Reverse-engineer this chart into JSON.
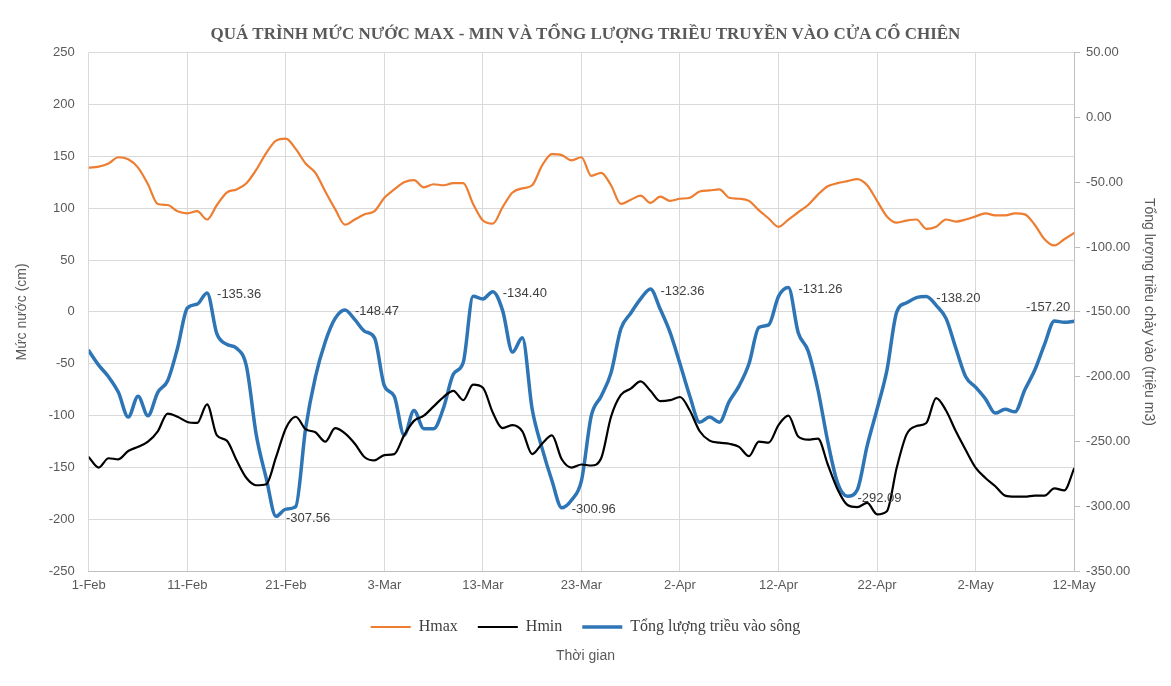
{
  "chart_data": {
    "type": "line",
    "title": "QUÁ TRÌNH MỨC NƯỚC MAX - MIN VÀ TỔNG LƯỢNG TRIỀU TRUYỀN VÀO CỬA CỔ CHIÊN",
    "xlabel": "Thời gian",
    "ylabel": "Mức nước (cm)",
    "y2label": "Tổng lượng triều chảy vào (triệu m3)",
    "x": [
      "--02-01",
      "--02-02",
      "--02-03",
      "--02-04",
      "--02-05",
      "--02-06",
      "--02-07",
      "--02-08",
      "--02-09",
      "--02-10",
      "--02-11",
      "--02-12",
      "--02-13",
      "--02-14",
      "--02-15",
      "--02-16",
      "--02-17",
      "--02-18",
      "--02-19",
      "--02-20",
      "--02-21",
      "--02-22",
      "--02-23",
      "--02-24",
      "--02-25",
      "--02-26",
      "--02-27",
      "--02-28",
      "--03-01",
      "--03-02",
      "--03-03",
      "--03-04",
      "--03-05",
      "--03-06",
      "--03-07",
      "--03-08",
      "--03-09",
      "--03-10",
      "--03-11",
      "--03-12",
      "--03-13",
      "--03-14",
      "--03-15",
      "--03-16",
      "--03-17",
      "--03-18",
      "--03-19",
      "--03-20",
      "--03-21",
      "--03-22",
      "--03-23",
      "--03-24",
      "--03-25",
      "--03-26",
      "--03-27",
      "--03-28",
      "--03-29",
      "--03-30",
      "--03-31",
      "--04-01",
      "--04-02",
      "--04-03",
      "--04-04",
      "--04-05",
      "--04-06",
      "--04-07",
      "--04-08",
      "--04-09",
      "--04-10",
      "--04-11",
      "--04-12",
      "--04-13",
      "--04-14",
      "--04-15",
      "--04-16",
      "--04-17",
      "--04-18",
      "--04-19",
      "--04-20",
      "--04-21",
      "--04-22",
      "--04-23",
      "--04-24",
      "--04-25",
      "--04-26",
      "--04-27",
      "--04-28",
      "--04-29",
      "--04-30",
      "--05-01",
      "--05-02",
      "--05-03",
      "--05-04",
      "--05-05",
      "--05-06",
      "--05-07",
      "--05-08",
      "--05-09",
      "--05-10",
      "--05-11",
      "--05-12"
    ],
    "xlim": [
      "--02-01",
      "--05-12"
    ],
    "xticks": [
      {
        "value": "--02-01",
        "label": "1-Feb"
      },
      {
        "value": "--02-11",
        "label": "11-Feb"
      },
      {
        "value": "--02-21",
        "label": "21-Feb"
      },
      {
        "value": "--03-03",
        "label": "3-Mar"
      },
      {
        "value": "--03-13",
        "label": "13-Mar"
      },
      {
        "value": "--03-23",
        "label": "23-Mar"
      },
      {
        "value": "--04-02",
        "label": "2-Apr"
      },
      {
        "value": "--04-12",
        "label": "12-Apr"
      },
      {
        "value": "--04-22",
        "label": "22-Apr"
      },
      {
        "value": "--05-02",
        "label": "2-May"
      },
      {
        "value": "--05-12",
        "label": "12-May"
      }
    ],
    "ylim": [
      -250,
      250
    ],
    "yticks": [
      -250,
      -200,
      -150,
      -100,
      -50,
      0,
      50,
      100,
      150,
      200,
      250
    ],
    "y2lim": [
      -350,
      50
    ],
    "y2ticks": [
      {
        "value": -350,
        "label": "-350.00"
      },
      {
        "value": -300,
        "label": "-300.00"
      },
      {
        "value": -250,
        "label": "-250.00"
      },
      {
        "value": -200,
        "label": "-200.00"
      },
      {
        "value": -150,
        "label": "-150.00"
      },
      {
        "value": -100,
        "label": "-100.00"
      },
      {
        "value": -50,
        "label": "-50.00"
      },
      {
        "value": 0,
        "label": "0.00"
      },
      {
        "value": 50,
        "label": "50.00"
      }
    ],
    "grid": true,
    "legend": "bottom",
    "marker": "none",
    "line_style": "solid",
    "series": [
      {
        "name": "Hmax",
        "color": "#ed7d31",
        "values": [
          139,
          140,
          143,
          149,
          147,
          139,
          123,
          104,
          103,
          97,
          95,
          97,
          89,
          103,
          115,
          118,
          124,
          137,
          153,
          165,
          167,
          157,
          143,
          134,
          116,
          99,
          84,
          89,
          94,
          97,
          110,
          118,
          125,
          127,
          120,
          123,
          122,
          124,
          124,
          104,
          88,
          85,
          101,
          115,
          119,
          122,
          141,
          152,
          151,
          146,
          149,
          131,
          134,
          122,
          104,
          108,
          112,
          105,
          111,
          107,
          109,
          110,
          116,
          117,
          118,
          110,
          109,
          107,
          98,
          90,
          82,
          89,
          96,
          103,
          113,
          121,
          124,
          126,
          128,
          122,
          107,
          92,
          86,
          88,
          89,
          80,
          82,
          89,
          87,
          89,
          92,
          95,
          93,
          93,
          95,
          94,
          84,
          70,
          64,
          70,
          76
        ]
      },
      {
        "name": "Hmin",
        "color": "#000000",
        "values": [
          -140,
          -150,
          -141,
          -142,
          -134,
          -130,
          -125,
          -115,
          -98,
          -101,
          -106,
          -107,
          -89,
          -119,
          -124,
          -143,
          -160,
          -167,
          -166,
          -140,
          -112,
          -101,
          -113,
          -116,
          -125,
          -112,
          -117,
          -127,
          -140,
          -143,
          -138,
          -137,
          -119,
          -105,
          -100,
          -91,
          -82,
          -76,
          -85,
          -70,
          -73,
          -97,
          -112,
          -109,
          -115,
          -137,
          -127,
          -119,
          -142,
          -150,
          -147,
          -148,
          -141,
          -101,
          -80,
          -74,
          -67,
          -76,
          -86,
          -85,
          -82,
          -95,
          -115,
          -124,
          -126,
          -127,
          -130,
          -139,
          -125,
          -126,
          -109,
          -100,
          -120,
          -123,
          -122,
          -147,
          -171,
          -186,
          -188,
          -184,
          -195,
          -192,
          -150,
          -118,
          -110,
          -107,
          -83,
          -95,
          -115,
          -133,
          -150,
          -160,
          -168,
          -177,
          -178,
          -178,
          -177,
          -177,
          -170,
          -172,
          -151
        ]
      },
      {
        "name": "Tổng lượng triều vào sông",
        "color": "#2e75b6",
        "axis": "y2",
        "values": [
          -180,
          -191,
          -200,
          -212,
          -231,
          -215,
          -230,
          -212,
          -203,
          -178,
          -147,
          -144,
          -135.36,
          -167,
          -175,
          -178,
          -192,
          -245,
          -278,
          -307.56,
          -302,
          -300,
          -240,
          -200,
          -173,
          -155,
          -148.47,
          -156,
          -165,
          -170,
          -207,
          -215,
          -245,
          -226,
          -240,
          -240,
          -224,
          -198,
          -189,
          -138,
          -140,
          -134.4,
          -149,
          -181,
          -170,
          -225,
          -255,
          -280,
          -300.96,
          -295,
          -280,
          -230,
          -215,
          -197,
          -163,
          -151,
          -140,
          -132.36,
          -148,
          -166,
          -190,
          -215,
          -235,
          -231,
          -235,
          -219,
          -207,
          -190,
          -162,
          -160,
          -138,
          -131.26,
          -166,
          -180,
          -210,
          -250,
          -282,
          -292.09,
          -287,
          -253,
          -225,
          -195,
          -150,
          -143,
          -139,
          -138.2,
          -145,
          -155,
          -178,
          -200,
          -208,
          -217,
          -228,
          -225,
          -227,
          -210,
          -195,
          -175,
          -157,
          -158,
          -157.2
        ],
        "value_labels": [
          null,
          null,
          null,
          null,
          null,
          null,
          null,
          null,
          null,
          null,
          null,
          null,
          "-135.36",
          null,
          null,
          null,
          null,
          null,
          null,
          "-307.56",
          null,
          null,
          null,
          null,
          null,
          null,
          "-148.47",
          null,
          null,
          null,
          null,
          null,
          null,
          null,
          null,
          null,
          null,
          null,
          null,
          null,
          null,
          "-134.40",
          null,
          null,
          null,
          null,
          null,
          null,
          "-300.96",
          null,
          null,
          null,
          null,
          null,
          null,
          null,
          null,
          "-132.36",
          null,
          null,
          null,
          null,
          null,
          null,
          null,
          null,
          null,
          null,
          null,
          null,
          null,
          "-131.26",
          null,
          null,
          null,
          null,
          null,
          "-292.09",
          null,
          null,
          null,
          null,
          null,
          null,
          null,
          "-138.20",
          null,
          null,
          null,
          null,
          null,
          null,
          null,
          null,
          null,
          null,
          null,
          null,
          null,
          null,
          "-157.20"
        ]
      }
    ]
  }
}
